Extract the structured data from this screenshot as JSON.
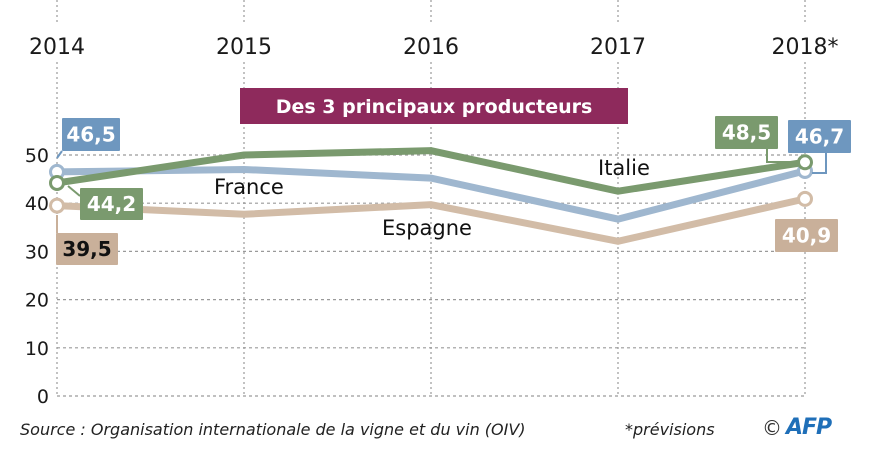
{
  "chart_data": {
    "type": "line",
    "title": "Des 3 principaux producteurs",
    "x": [
      "2014",
      "2015",
      "2016",
      "2017",
      "2018*"
    ],
    "ylim": [
      0,
      50
    ],
    "yticks": [
      "0",
      "10",
      "20",
      "30",
      "40",
      "50"
    ],
    "grid": true,
    "xlabel": "",
    "ylabel": "",
    "series": [
      {
        "name": "Italie",
        "color": "#7a9a6e",
        "values": [
          44.2,
          50.0,
          50.9,
          42.5,
          48.5
        ],
        "labels": {
          "start": "44,2",
          "end": "48,5"
        }
      },
      {
        "name": "France",
        "color": "#9fb7cf",
        "label_color": "#6e97bf",
        "values": [
          46.5,
          47.0,
          45.2,
          36.7,
          46.7
        ],
        "labels": {
          "start": "46,5",
          "end": "46,7"
        }
      },
      {
        "name": "Espagne",
        "color": "#d2bca7",
        "label_color": "#c9b09a",
        "values": [
          39.5,
          37.7,
          39.7,
          32.1,
          40.9
        ],
        "labels": {
          "start": "39,5",
          "end": "40,9"
        }
      }
    ]
  },
  "footer": {
    "source": "Source : Organisation internationale de la vigne et du vin (OIV)",
    "note": "*prévisions",
    "copyright_symbol": "©",
    "agency": "AFP"
  },
  "colors": {
    "title_bg": "#8e2a5c",
    "grid": "#9a9a9a"
  }
}
